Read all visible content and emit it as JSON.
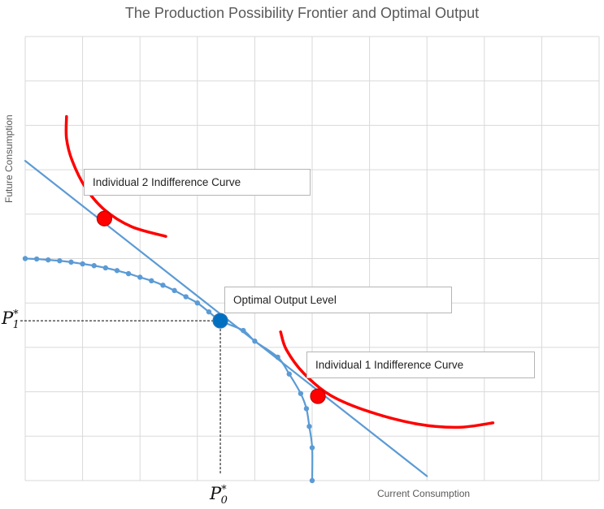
{
  "chart_data": {
    "type": "line",
    "title": "The Production Possibility Frontier and Optimal Output",
    "xlabel": "Current Consumption",
    "ylabel": "Future Consumption",
    "xlim": [
      0,
      10
    ],
    "ylim": [
      0,
      10
    ],
    "grid": true,
    "series": [
      {
        "id": "ppf",
        "color": "#5b9bd5",
        "markers": true,
        "points": [
          [
            0,
            5.0
          ],
          [
            0.2,
            4.99
          ],
          [
            0.4,
            4.97
          ],
          [
            0.6,
            4.95
          ],
          [
            0.8,
            4.92
          ],
          [
            1.0,
            4.88
          ],
          [
            1.2,
            4.84
          ],
          [
            1.4,
            4.79
          ],
          [
            1.6,
            4.73
          ],
          [
            1.8,
            4.66
          ],
          [
            2.0,
            4.58
          ],
          [
            2.2,
            4.5
          ],
          [
            2.4,
            4.4
          ],
          [
            2.6,
            4.28
          ],
          [
            2.8,
            4.14
          ],
          [
            3.0,
            4.0
          ],
          [
            3.2,
            3.8
          ],
          [
            3.4,
            3.6
          ],
          [
            3.8,
            3.38
          ],
          [
            4.0,
            3.14
          ],
          [
            4.4,
            2.78
          ],
          [
            4.6,
            2.4
          ],
          [
            4.8,
            1.96
          ],
          [
            4.9,
            1.62
          ],
          [
            4.95,
            1.22
          ],
          [
            5.0,
            0.74
          ],
          [
            5.0,
            0.0
          ]
        ]
      },
      {
        "id": "budget-line",
        "color": "#5b9bd5",
        "markers": false,
        "points": [
          [
            0,
            7.2
          ],
          [
            7.0,
            0.1
          ]
        ]
      },
      {
        "id": "indifference-2",
        "color": "#ff0000",
        "markers": false,
        "points": [
          [
            0.72,
            8.2
          ],
          [
            0.72,
            7.7
          ],
          [
            0.82,
            7.2
          ],
          [
            1.05,
            6.6
          ],
          [
            1.38,
            6.1
          ],
          [
            1.85,
            5.72
          ],
          [
            2.45,
            5.5
          ]
        ]
      },
      {
        "id": "indifference-1",
        "color": "#ff0000",
        "markers": false,
        "points": [
          [
            4.45,
            3.35
          ],
          [
            4.55,
            2.95
          ],
          [
            4.85,
            2.42
          ],
          [
            5.32,
            1.92
          ],
          [
            6.0,
            1.55
          ],
          [
            6.85,
            1.27
          ],
          [
            7.55,
            1.2
          ],
          [
            8.15,
            1.3
          ]
        ]
      }
    ],
    "points": [
      {
        "label": "Optimal Output Level",
        "x": 3.4,
        "y": 3.6,
        "color": "#0070c0"
      },
      {
        "label": "Individual 2 Indifference Curve",
        "x": 1.38,
        "y": 5.9,
        "color": "#ff0000"
      },
      {
        "label": "Individual 1 Indifference Curve",
        "x": 5.1,
        "y": 1.9,
        "color": "#ff0000"
      }
    ],
    "annotations": [
      "Individual 2 Indifference Curve",
      "Optimal Output Level",
      "Individual 1 Indifference Curve"
    ],
    "reference_labels": {
      "p1": {
        "base": "P",
        "sup": "*",
        "sub": "1"
      },
      "p0": {
        "base": "P",
        "sup": "*",
        "sub": "0"
      }
    }
  }
}
